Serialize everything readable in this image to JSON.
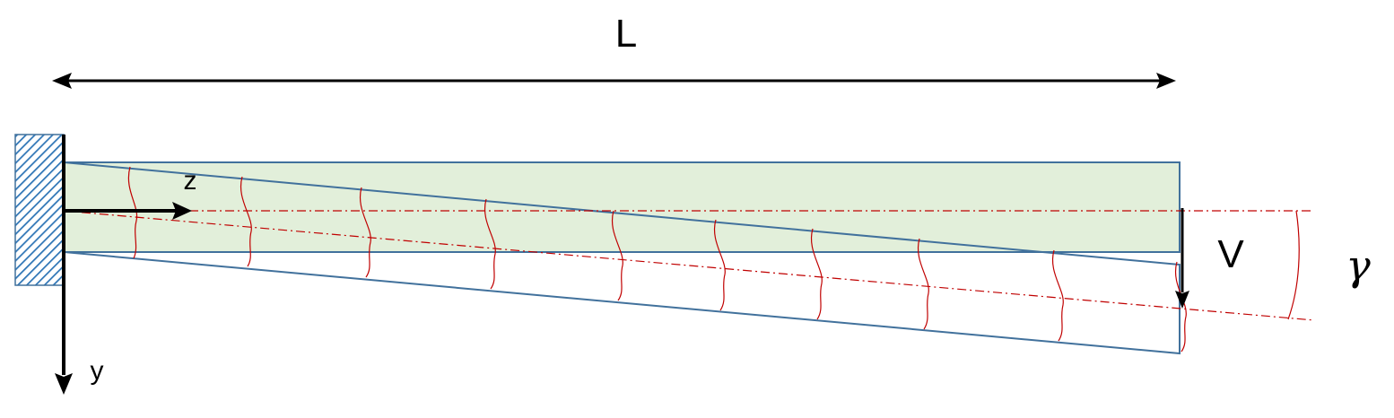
{
  "labels": {
    "length": "L",
    "z_axis": "z",
    "y_axis": "y",
    "load": "V",
    "shear_angle": "γ"
  },
  "colors": {
    "beam_fill": "#e2efda",
    "outline": "#41719c",
    "warp_lines": "#c00000",
    "axis": "#000000",
    "wall_hatch": "#2e75b6"
  }
}
